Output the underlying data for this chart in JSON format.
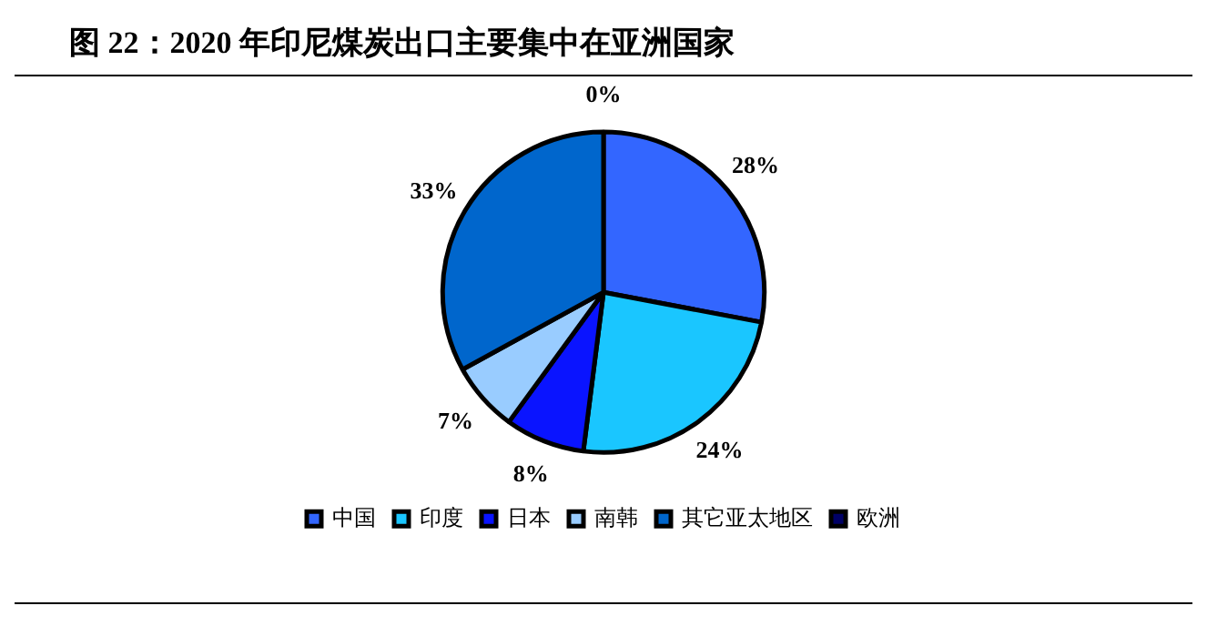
{
  "chart_data": {
    "type": "pie",
    "title": "图 22：2020 年印尼煤炭出口主要集中在亚洲国家",
    "categories": [
      "中国",
      "印度",
      "日本",
      "南韩",
      "其它亚太地区",
      "欧洲"
    ],
    "values": [
      28,
      24,
      8,
      7,
      33,
      0
    ],
    "colors": [
      "#3366ff",
      "#1ac6ff",
      "#0a14ff",
      "#99ccff",
      "#0066cc",
      "#000066"
    ],
    "value_labels": [
      "28%",
      "24%",
      "8%",
      "7%",
      "33%",
      "0%"
    ],
    "legend": "bottom"
  }
}
